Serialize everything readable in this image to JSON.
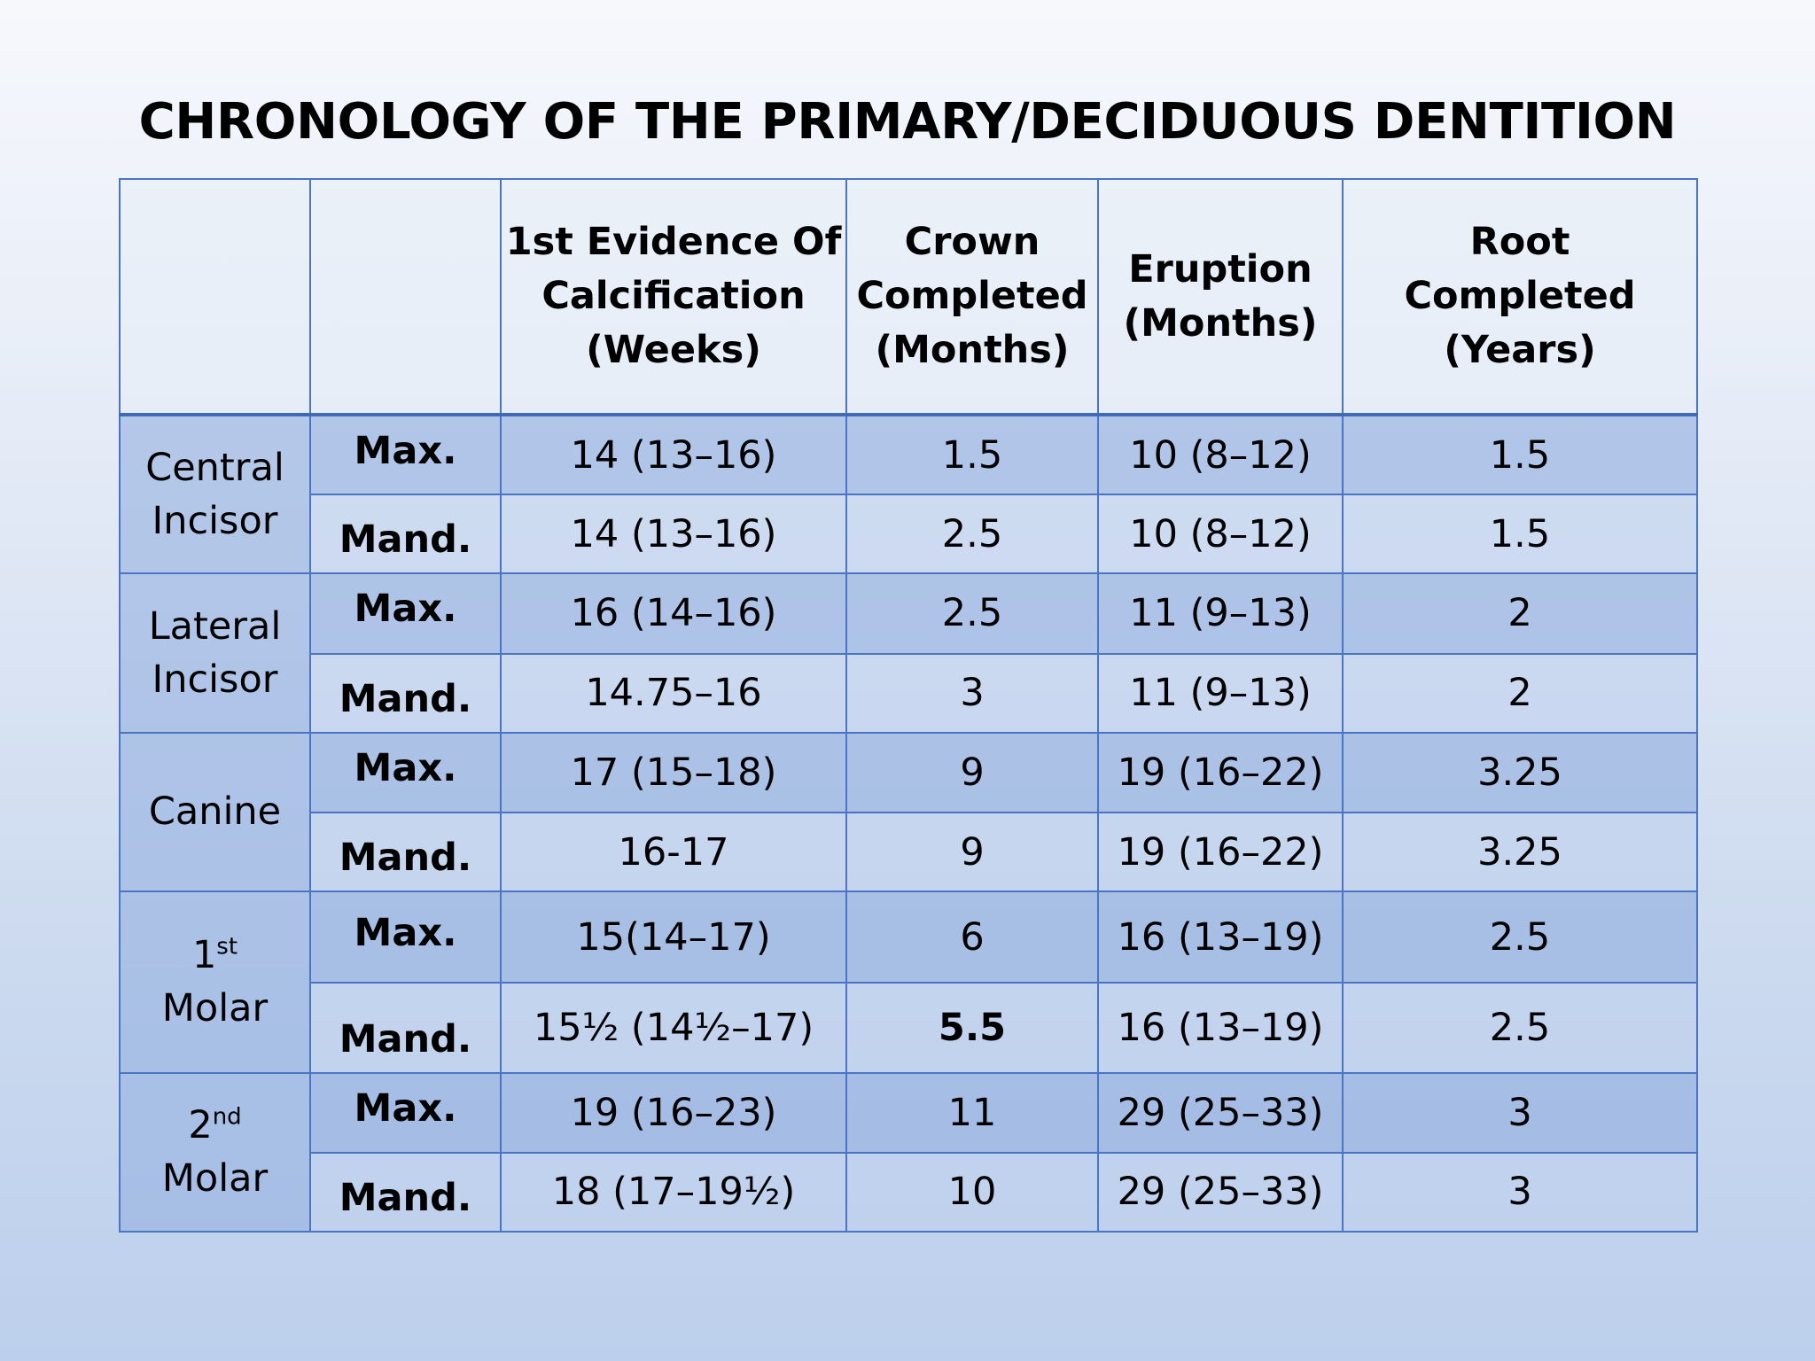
{
  "title": "CHRONOLOGY OF THE PRIMARY/DECIDUOUS DENTITION",
  "headers": {
    "blank1": "",
    "blank2": "",
    "calcification": [
      "1st Evidence Of",
      "Calcification",
      "(Weeks)"
    ],
    "crown": [
      "Crown",
      "Completed",
      "(Months)"
    ],
    "eruption": [
      "Eruption",
      "(Months)"
    ],
    "root": [
      "Root",
      "Completed",
      "(Years)"
    ]
  },
  "teeth": [
    {
      "name_line1": "Central",
      "name_sup": "",
      "name_line2": "Incisor",
      "rows": [
        {
          "jaw": "Max.",
          "calcification": "14 (13–16)",
          "crown": "1.5",
          "eruption": "10 (8–12)",
          "root": "1.5"
        },
        {
          "jaw": "Mand.",
          "calcification": "14 (13–16)",
          "crown": "2.5",
          "eruption": "10 (8–12)",
          "root": "1.5"
        }
      ]
    },
    {
      "name_line1": "Lateral",
      "name_sup": "",
      "name_line2": "Incisor",
      "rows": [
        {
          "jaw": "Max.",
          "calcification": "16 (14–16)",
          "crown": "2.5",
          "eruption": "11 (9–13)",
          "root": "2"
        },
        {
          "jaw": "Mand.",
          "calcification": "14.75–16",
          "crown": "3",
          "eruption": "11 (9–13)",
          "root": "2"
        }
      ]
    },
    {
      "name_line1": "Canine",
      "name_sup": "",
      "name_line2": "",
      "rows": [
        {
          "jaw": "Max.",
          "calcification": "17 (15–18)",
          "crown": "9",
          "eruption": "19 (16–22)",
          "root": "3.25"
        },
        {
          "jaw": "Mand.",
          "calcification": "16-17",
          "crown": "9",
          "eruption": "19 (16–22)",
          "root": "3.25"
        }
      ]
    },
    {
      "name_line1": "1",
      "name_sup": "st",
      "name_line2": "Molar",
      "rows": [
        {
          "jaw": "Max.",
          "calcification": "15(14–17)",
          "crown": "6",
          "eruption": "16 (13–19)",
          "root": "2.5"
        },
        {
          "jaw": "Mand.",
          "calcification": "15½ (14½–17)",
          "crown": "5.5",
          "eruption": "16 (13–19)",
          "root": "2.5"
        }
      ]
    },
    {
      "name_line1": "2",
      "name_sup": "nd",
      "name_line2": "Molar",
      "rows": [
        {
          "jaw": "Max.",
          "calcification": "19 (16–23)",
          "crown": "11",
          "eruption": "29 (25–33)",
          "root": "3"
        },
        {
          "jaw": "Mand.",
          "calcification": "18 (17–19½)",
          "crown": "10",
          "eruption": "29 (25–33)",
          "root": "3"
        }
      ]
    }
  ]
}
